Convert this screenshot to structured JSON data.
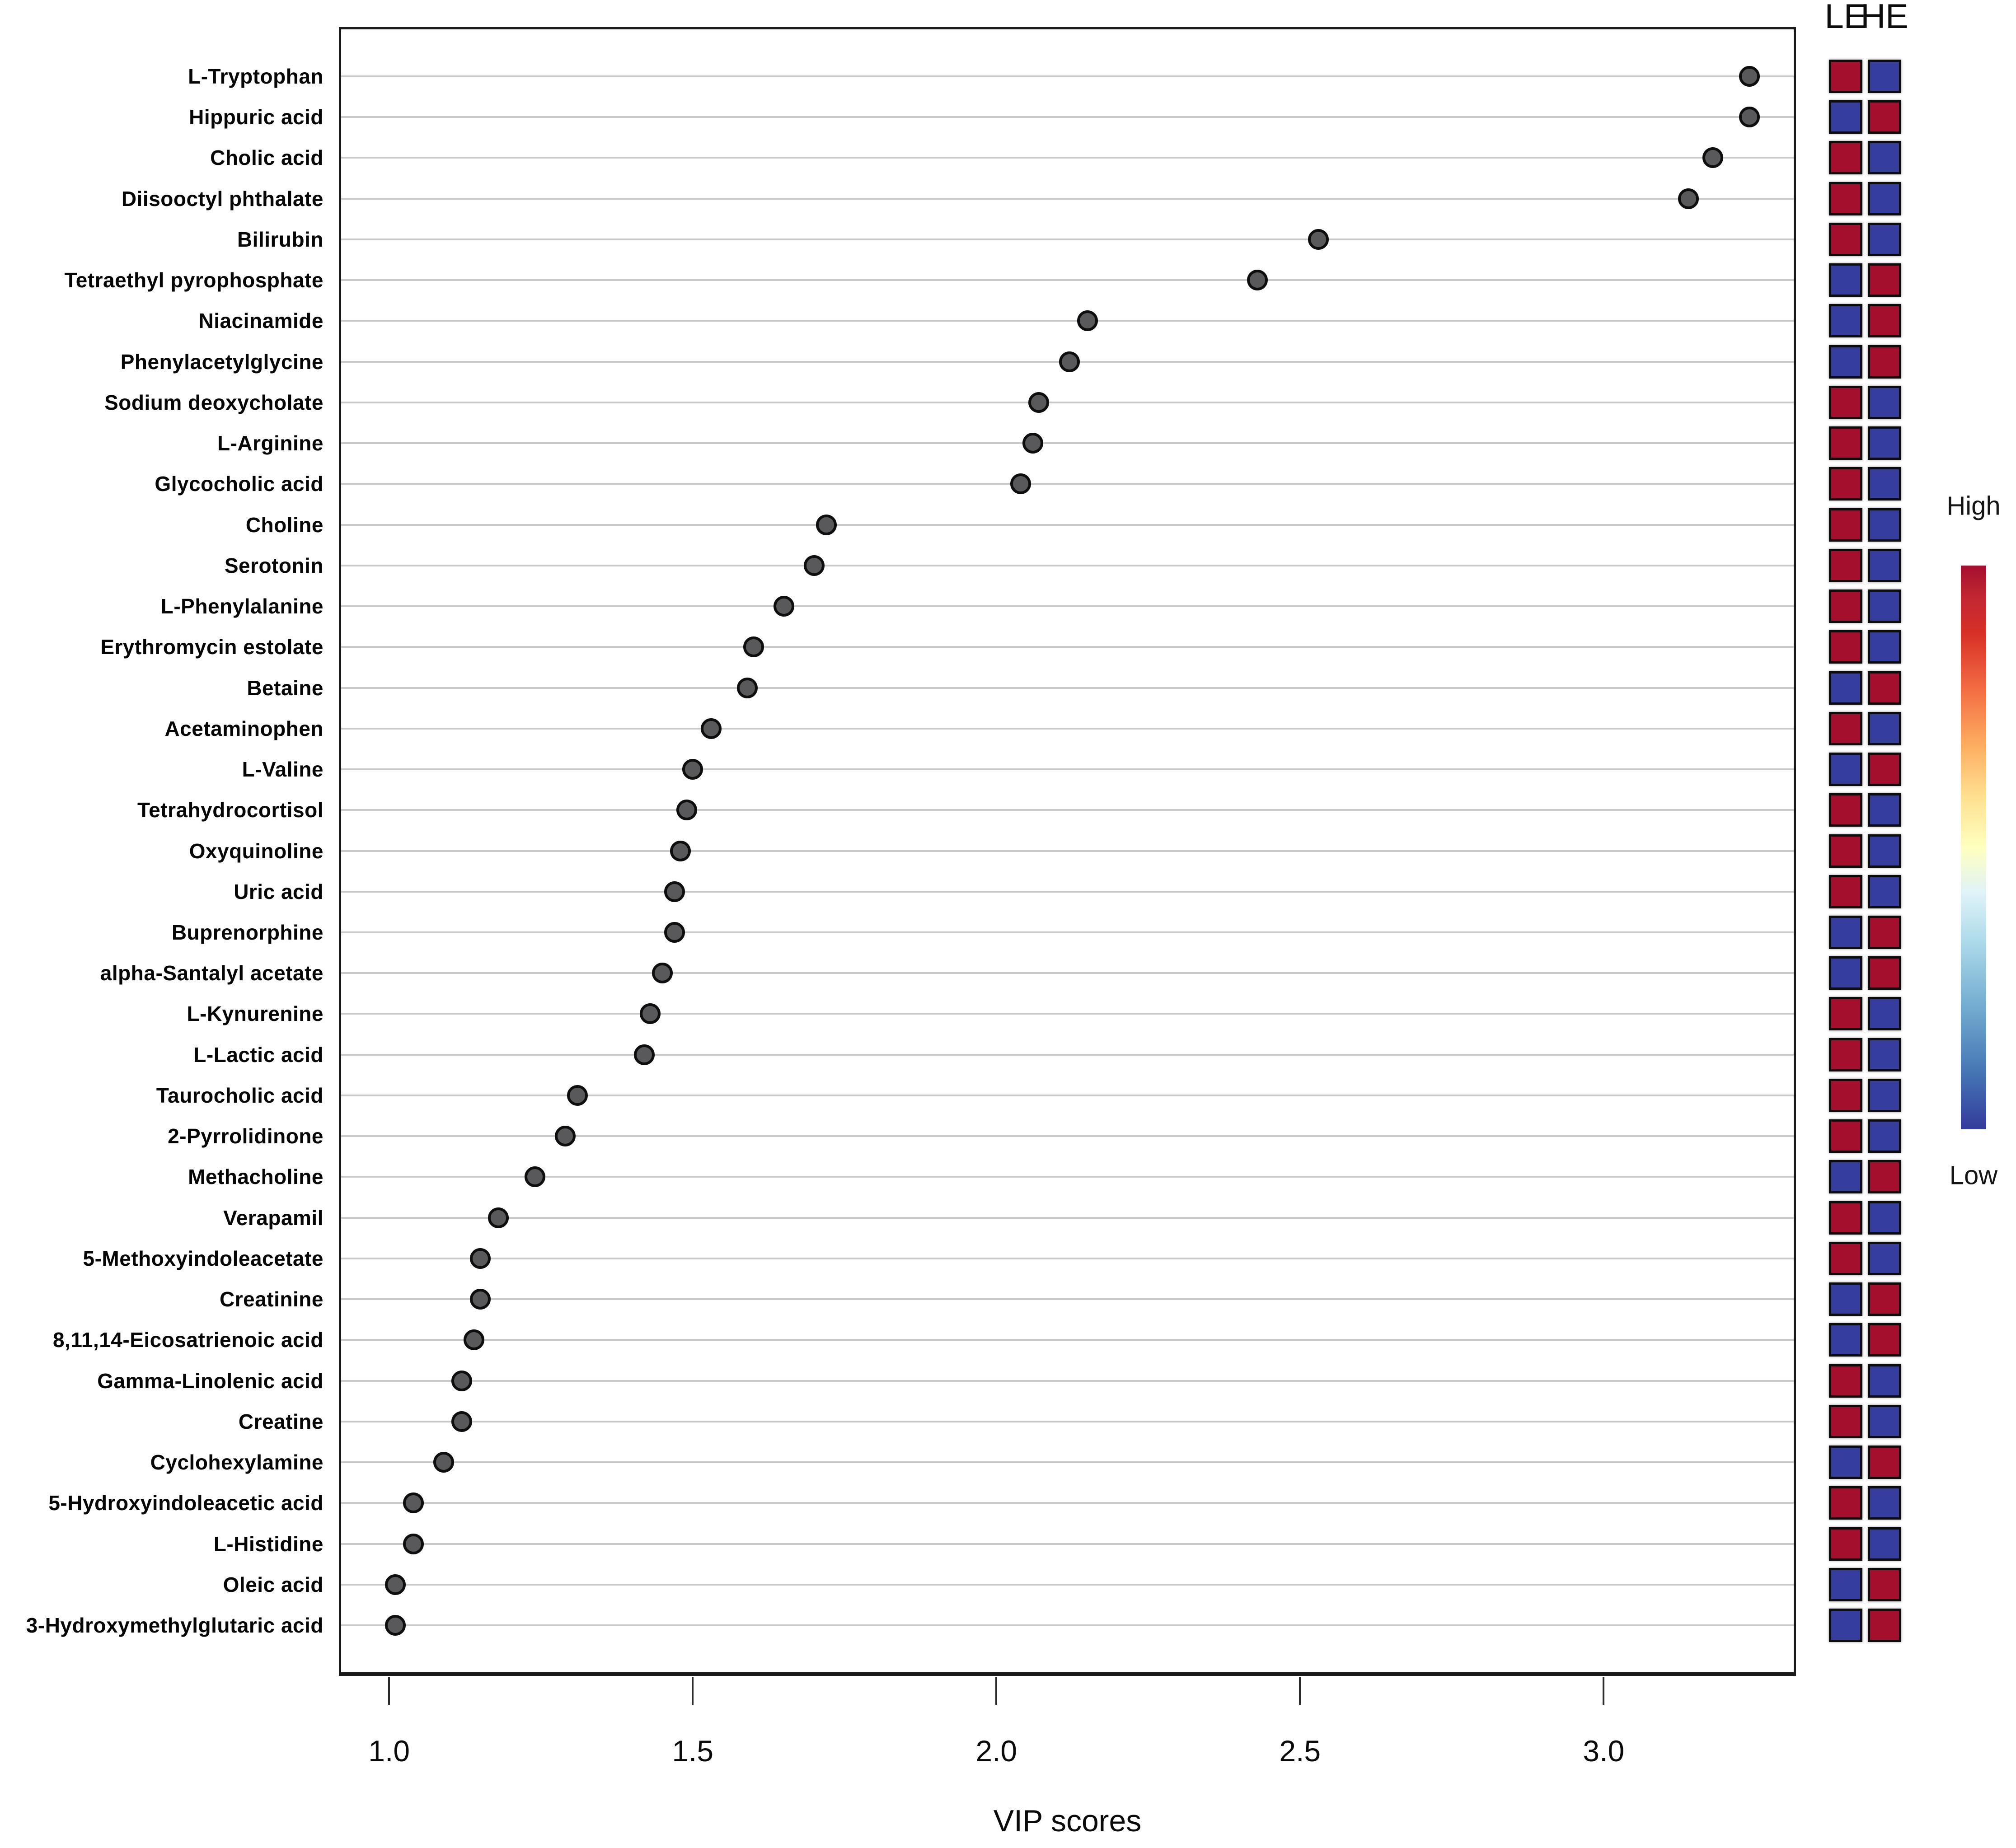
{
  "chart_data": {
    "type": "scatter",
    "title": "",
    "xlabel": "VIP scores",
    "x_tick_labels": [
      "1.0",
      "1.5",
      "2.0",
      "2.5",
      "3.0"
    ],
    "x_ticks": [
      1.0,
      1.5,
      2.0,
      2.5,
      3.0
    ],
    "x_range": [
      0.92,
      3.31
    ],
    "grid": "horizontal gray line per category",
    "legend_position": "right",
    "items": [
      {
        "label": "L-Tryptophan",
        "vip": 3.24,
        "le": "high",
        "he": "low"
      },
      {
        "label": "Hippuric acid",
        "vip": 3.24,
        "le": "low",
        "he": "high"
      },
      {
        "label": "Cholic acid",
        "vip": 3.18,
        "le": "high",
        "he": "low"
      },
      {
        "label": "Diisooctyl phthalate",
        "vip": 3.14,
        "le": "high",
        "he": "low"
      },
      {
        "label": "Bilirubin",
        "vip": 2.53,
        "le": "high",
        "he": "low"
      },
      {
        "label": "Tetraethyl pyrophosphate",
        "vip": 2.43,
        "le": "low",
        "he": "high"
      },
      {
        "label": "Niacinamide",
        "vip": 2.15,
        "le": "low",
        "he": "high"
      },
      {
        "label": "Phenylacetylglycine",
        "vip": 2.12,
        "le": "low",
        "he": "high"
      },
      {
        "label": "Sodium deoxycholate",
        "vip": 2.07,
        "le": "high",
        "he": "low"
      },
      {
        "label": "L-Arginine",
        "vip": 2.06,
        "le": "high",
        "he": "low"
      },
      {
        "label": "Glycocholic acid",
        "vip": 2.04,
        "le": "high",
        "he": "low"
      },
      {
        "label": "Choline",
        "vip": 1.72,
        "le": "high",
        "he": "low"
      },
      {
        "label": "Serotonin",
        "vip": 1.7,
        "le": "high",
        "he": "low"
      },
      {
        "label": "L-Phenylalanine",
        "vip": 1.65,
        "le": "high",
        "he": "low"
      },
      {
        "label": "Erythromycin estolate",
        "vip": 1.6,
        "le": "high",
        "he": "low"
      },
      {
        "label": "Betaine",
        "vip": 1.59,
        "le": "low",
        "he": "high"
      },
      {
        "label": "Acetaminophen",
        "vip": 1.53,
        "le": "high",
        "he": "low"
      },
      {
        "label": "L-Valine",
        "vip": 1.5,
        "le": "low",
        "he": "high"
      },
      {
        "label": "Tetrahydrocortisol",
        "vip": 1.49,
        "le": "high",
        "he": "low"
      },
      {
        "label": "Oxyquinoline",
        "vip": 1.48,
        "le": "high",
        "he": "low"
      },
      {
        "label": "Uric acid",
        "vip": 1.47,
        "le": "high",
        "he": "low"
      },
      {
        "label": "Buprenorphine",
        "vip": 1.47,
        "le": "low",
        "he": "high"
      },
      {
        "label": "alpha-Santalyl acetate",
        "vip": 1.45,
        "le": "low",
        "he": "high"
      },
      {
        "label": "L-Kynurenine",
        "vip": 1.43,
        "le": "high",
        "he": "low"
      },
      {
        "label": "L-Lactic acid",
        "vip": 1.42,
        "le": "high",
        "he": "low"
      },
      {
        "label": "Taurocholic acid",
        "vip": 1.31,
        "le": "high",
        "he": "low"
      },
      {
        "label": "2-Pyrrolidinone",
        "vip": 1.29,
        "le": "high",
        "he": "low"
      },
      {
        "label": "Methacholine",
        "vip": 1.24,
        "le": "low",
        "he": "high"
      },
      {
        "label": "Verapamil",
        "vip": 1.18,
        "le": "high",
        "he": "low"
      },
      {
        "label": "5-Methoxyindoleacetate",
        "vip": 1.15,
        "le": "high",
        "he": "low"
      },
      {
        "label": "Creatinine",
        "vip": 1.15,
        "le": "low",
        "he": "high"
      },
      {
        "label": "8,11,14-Eicosatrienoic acid",
        "vip": 1.14,
        "le": "low",
        "he": "high"
      },
      {
        "label": "Gamma-Linolenic acid",
        "vip": 1.12,
        "le": "high",
        "he": "low"
      },
      {
        "label": "Creatine",
        "vip": 1.12,
        "le": "high",
        "he": "low"
      },
      {
        "label": "Cyclohexylamine",
        "vip": 1.09,
        "le": "low",
        "he": "high"
      },
      {
        "label": "5-Hydroxyindoleacetic acid",
        "vip": 1.04,
        "le": "high",
        "he": "low"
      },
      {
        "label": "L-Histidine",
        "vip": 1.04,
        "le": "high",
        "he": "low"
      },
      {
        "label": "Oleic acid",
        "vip": 1.01,
        "le": "low",
        "he": "high"
      },
      {
        "label": "3-Hydroxymethylglutaric acid",
        "vip": 1.01,
        "le": "low",
        "he": "high"
      }
    ]
  },
  "heatmap": {
    "columns": [
      "LE",
      "HE"
    ],
    "high_color": "#a50f2e",
    "low_color": "#363e9d"
  },
  "legend": {
    "high_label": "High",
    "low_label": "Low"
  },
  "colors": {
    "dot_fill": "#59595b",
    "dot_stroke": "#0e0e0e",
    "gridline": "#c9c9c9",
    "plot_border": "#1a1a1a"
  }
}
